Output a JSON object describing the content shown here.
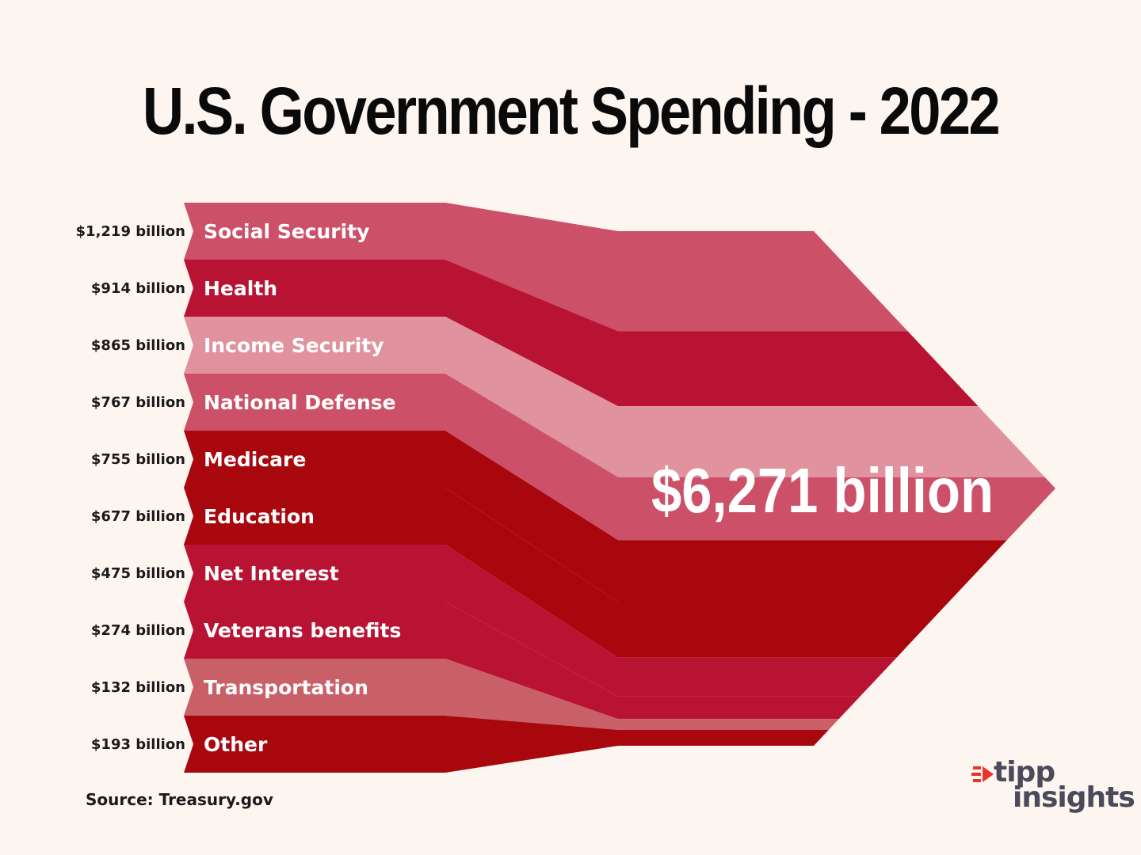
{
  "title": "U.S. Government Spending - 2022",
  "total_label": "$6,271 billion",
  "source": "Source: Treasury.gov",
  "logo": {
    "word1": "tipp",
    "word2": "insights",
    "accent": "#e8352a"
  },
  "chart_data": {
    "type": "sankey",
    "title": "U.S. Government Spending - 2022",
    "total": 6271,
    "unit": "billion",
    "categories": [
      "Social Security",
      "Health",
      "Income Security",
      "National Defense",
      "Medicare",
      "Education",
      "Net Interest",
      "Veterans benefits",
      "Transportation",
      "Other"
    ],
    "values": [
      1219,
      914,
      865,
      767,
      755,
      677,
      475,
      274,
      132,
      193
    ],
    "value_labels": [
      "$1,219 billion",
      "$914 billion",
      "$865 billion",
      "$767 billion",
      "$755 billion",
      "$677 billion",
      "$475 billion",
      "$274 billion",
      "$132 billion",
      "$193 billion"
    ],
    "colors": [
      "#cd5069",
      "#b91333",
      "#e0929f",
      "#cd5069",
      "#a8070e",
      "#a8070e",
      "#b91333",
      "#b91333",
      "#c96068",
      "#a8070e"
    ]
  }
}
